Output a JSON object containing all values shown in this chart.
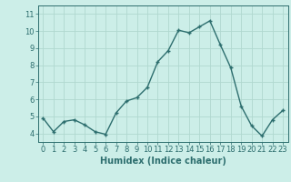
{
  "x": [
    0,
    1,
    2,
    3,
    4,
    5,
    6,
    7,
    8,
    9,
    10,
    11,
    12,
    13,
    14,
    15,
    16,
    17,
    18,
    19,
    20,
    21,
    22,
    23
  ],
  "y": [
    4.9,
    4.1,
    4.7,
    4.8,
    4.5,
    4.1,
    3.95,
    5.2,
    5.9,
    6.1,
    6.7,
    8.2,
    8.85,
    10.05,
    9.9,
    10.25,
    10.6,
    9.2,
    7.85,
    5.6,
    4.45,
    3.85,
    4.8,
    5.35
  ],
  "line_color": "#2d6e6e",
  "marker": "+",
  "marker_size": 3,
  "bg_color": "#cceee8",
  "grid_color": "#b0d8d0",
  "xlabel": "Humidex (Indice chaleur)",
  "xlabel_fontsize": 7,
  "tick_fontsize": 6,
  "xlim": [
    -0.5,
    23.5
  ],
  "ylim": [
    3.5,
    11.5
  ],
  "yticks": [
    4,
    5,
    6,
    7,
    8,
    9,
    10,
    11
  ],
  "xticks": [
    0,
    1,
    2,
    3,
    4,
    5,
    6,
    7,
    8,
    9,
    10,
    11,
    12,
    13,
    14,
    15,
    16,
    17,
    18,
    19,
    20,
    21,
    22,
    23
  ],
  "line_width": 1.0
}
